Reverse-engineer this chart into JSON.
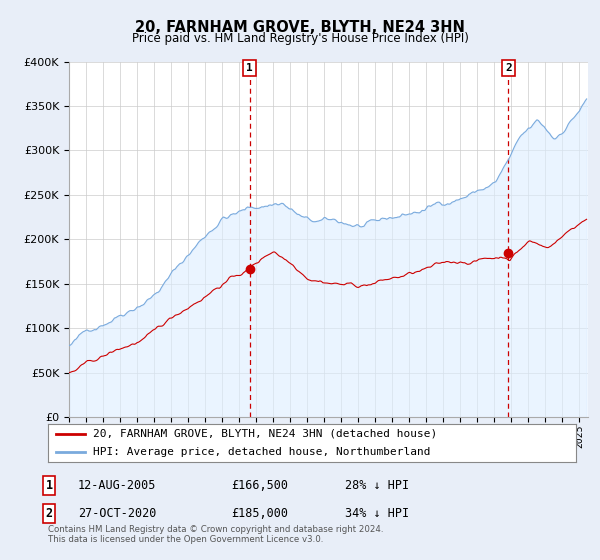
{
  "title": "20, FARNHAM GROVE, BLYTH, NE24 3HN",
  "subtitle": "Price paid vs. HM Land Registry's House Price Index (HPI)",
  "legend_line1": "20, FARNHAM GROVE, BLYTH, NE24 3HN (detached house)",
  "legend_line2": "HPI: Average price, detached house, Northumberland",
  "footnote": "Contains HM Land Registry data © Crown copyright and database right 2024.\nThis data is licensed under the Open Government Licence v3.0.",
  "sale1_date": "12-AUG-2005",
  "sale1_price": "£166,500",
  "sale1_note": "28% ↓ HPI",
  "sale2_date": "27-OCT-2020",
  "sale2_price": "£185,000",
  "sale2_note": "34% ↓ HPI",
  "sale1_x": 2005.617,
  "sale1_y": 166500,
  "sale2_x": 2020.828,
  "sale2_y": 185000,
  "property_color": "#cc0000",
  "hpi_color": "#7aaadd",
  "hpi_fill_color": "#ddeeff",
  "vline_color": "#cc0000",
  "background_color": "#e8eef8",
  "plot_background": "#ffffff",
  "ylim": [
    0,
    400000
  ],
  "xlim": [
    1995.0,
    2025.5
  ]
}
